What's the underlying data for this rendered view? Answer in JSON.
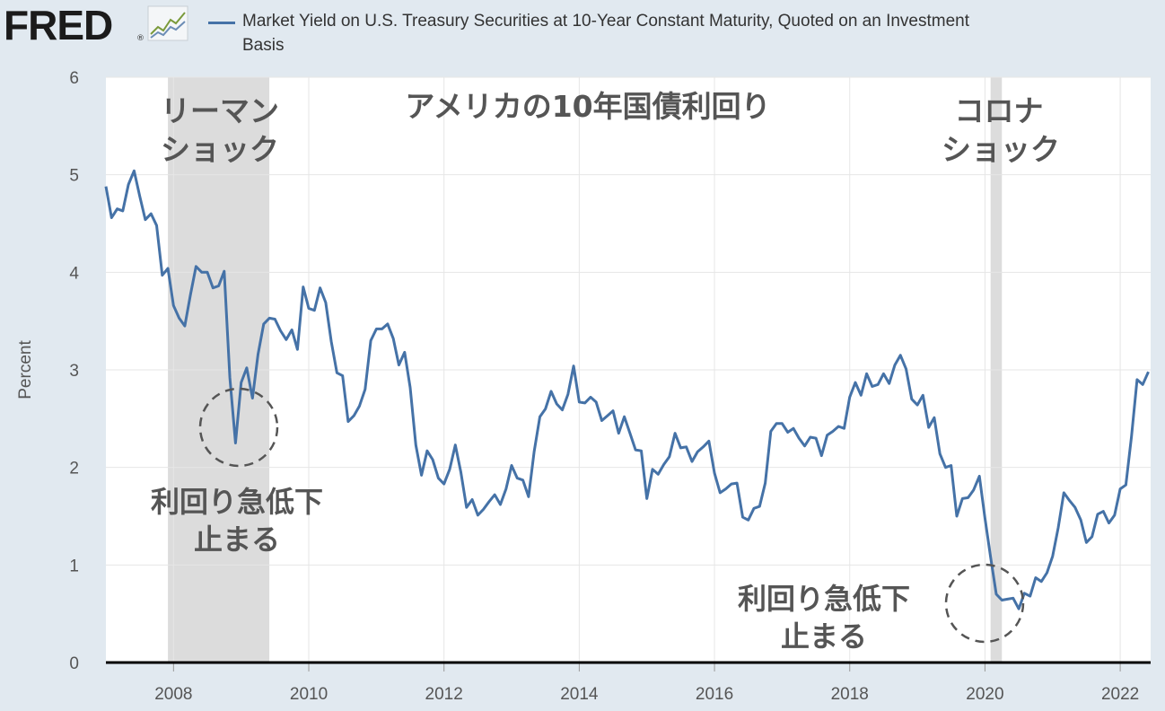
{
  "header": {
    "logo_text": "FRED",
    "logo_mark": "®",
    "logo_icon": "line-chart-icon",
    "legend": "Market Yield on U.S. Treasury Securities at 10-Year Constant Maturity, Quoted on an Investment Basis",
    "legend_color": "#4572a7"
  },
  "chart_data": {
    "type": "line",
    "title": "アメリカの10年国債利回り",
    "ylabel": "Percent",
    "xlabel": "",
    "ylim": [
      0,
      6
    ],
    "xlim": [
      2007.0,
      2022.45
    ],
    "yticks": [
      "0",
      "1",
      "2",
      "3",
      "4",
      "5",
      "6"
    ],
    "xticks": [
      "2008",
      "2010",
      "2012",
      "2014",
      "2016",
      "2018",
      "2020",
      "2022"
    ],
    "grid": true,
    "line_color": "#4572a7",
    "recession_color": "#dcdcdc",
    "recessions": [
      [
        2007.917,
        2009.417
      ],
      [
        2020.083,
        2020.25
      ]
    ],
    "recession_labels": [
      {
        "lines": [
          "リーマン",
          "ショック"
        ]
      },
      {
        "lines": [
          "コロナ",
          "ショック"
        ]
      }
    ],
    "annotations": [
      {
        "lines": [
          "利回り急低下",
          "止まる"
        ]
      },
      {
        "lines": [
          "利回り急低下",
          "止まる"
        ]
      }
    ],
    "x": [
      2007.0,
      2007.083,
      2007.167,
      2007.25,
      2007.333,
      2007.417,
      2007.5,
      2007.583,
      2007.667,
      2007.75,
      2007.833,
      2007.917,
      2008.0,
      2008.083,
      2008.167,
      2008.25,
      2008.333,
      2008.417,
      2008.5,
      2008.583,
      2008.667,
      2008.75,
      2008.833,
      2008.917,
      2009.0,
      2009.083,
      2009.167,
      2009.25,
      2009.333,
      2009.417,
      2009.5,
      2009.583,
      2009.667,
      2009.75,
      2009.833,
      2009.917,
      2010.0,
      2010.083,
      2010.167,
      2010.25,
      2010.333,
      2010.417,
      2010.5,
      2010.583,
      2010.667,
      2010.75,
      2010.833,
      2010.917,
      2011.0,
      2011.083,
      2011.167,
      2011.25,
      2011.333,
      2011.417,
      2011.5,
      2011.583,
      2011.667,
      2011.75,
      2011.833,
      2011.917,
      2012.0,
      2012.083,
      2012.167,
      2012.25,
      2012.333,
      2012.417,
      2012.5,
      2012.583,
      2012.667,
      2012.75,
      2012.833,
      2012.917,
      2013.0,
      2013.083,
      2013.167,
      2013.25,
      2013.333,
      2013.417,
      2013.5,
      2013.583,
      2013.667,
      2013.75,
      2013.833,
      2013.917,
      2014.0,
      2014.083,
      2014.167,
      2014.25,
      2014.333,
      2014.417,
      2014.5,
      2014.583,
      2014.667,
      2014.75,
      2014.833,
      2014.917,
      2015.0,
      2015.083,
      2015.167,
      2015.25,
      2015.333,
      2015.417,
      2015.5,
      2015.583,
      2015.667,
      2015.75,
      2015.833,
      2015.917,
      2016.0,
      2016.083,
      2016.167,
      2016.25,
      2016.333,
      2016.417,
      2016.5,
      2016.583,
      2016.667,
      2016.75,
      2016.833,
      2016.917,
      2017.0,
      2017.083,
      2017.167,
      2017.25,
      2017.333,
      2017.417,
      2017.5,
      2017.583,
      2017.667,
      2017.75,
      2017.833,
      2017.917,
      2018.0,
      2018.083,
      2018.167,
      2018.25,
      2018.333,
      2018.417,
      2018.5,
      2018.583,
      2018.667,
      2018.75,
      2018.833,
      2018.917,
      2019.0,
      2019.083,
      2019.167,
      2019.25,
      2019.333,
      2019.417,
      2019.5,
      2019.583,
      2019.667,
      2019.75,
      2019.833,
      2019.917,
      2020.0,
      2020.083,
      2020.167,
      2020.25,
      2020.333,
      2020.417,
      2020.5,
      2020.583,
      2020.667,
      2020.75,
      2020.833,
      2020.917,
      2021.0,
      2021.083,
      2021.167,
      2021.25,
      2021.333,
      2021.417,
      2021.5,
      2021.583,
      2021.667,
      2021.75,
      2021.833,
      2021.917,
      2022.0,
      2022.083,
      2022.167,
      2022.25,
      2022.333,
      2022.417
    ],
    "y": [
      4.88,
      4.56,
      4.65,
      4.63,
      4.9,
      5.04,
      4.78,
      4.54,
      4.6,
      4.48,
      3.97,
      4.04,
      3.66,
      3.53,
      3.45,
      3.77,
      4.06,
      4.0,
      4.0,
      3.84,
      3.86,
      4.01,
      2.92,
      2.25,
      2.87,
      3.02,
      2.71,
      3.16,
      3.47,
      3.53,
      3.52,
      3.4,
      3.31,
      3.41,
      3.21,
      3.85,
      3.63,
      3.61,
      3.84,
      3.69,
      3.29,
      2.97,
      2.94,
      2.47,
      2.53,
      2.63,
      2.8,
      3.3,
      3.42,
      3.42,
      3.47,
      3.32,
      3.05,
      3.18,
      2.82,
      2.23,
      1.92,
      2.17,
      2.08,
      1.89,
      1.83,
      1.98,
      2.23,
      1.95,
      1.59,
      1.67,
      1.51,
      1.57,
      1.65,
      1.72,
      1.62,
      1.78,
      2.02,
      1.89,
      1.87,
      1.7,
      2.16,
      2.52,
      2.6,
      2.78,
      2.65,
      2.59,
      2.75,
      3.04,
      2.67,
      2.66,
      2.72,
      2.67,
      2.48,
      2.53,
      2.58,
      2.35,
      2.52,
      2.35,
      2.18,
      2.17,
      1.68,
      1.98,
      1.93,
      2.03,
      2.11,
      2.35,
      2.2,
      2.21,
      2.06,
      2.16,
      2.21,
      2.27,
      1.94,
      1.74,
      1.78,
      1.83,
      1.84,
      1.49,
      1.46,
      1.58,
      1.6,
      1.84,
      2.37,
      2.45,
      2.45,
      2.36,
      2.4,
      2.3,
      2.22,
      2.31,
      2.3,
      2.12,
      2.33,
      2.37,
      2.42,
      2.4,
      2.72,
      2.87,
      2.74,
      2.96,
      2.83,
      2.85,
      2.96,
      2.86,
      3.05,
      3.15,
      3.01,
      2.7,
      2.64,
      2.74,
      2.41,
      2.51,
      2.14,
      2.0,
      2.02,
      1.5,
      1.68,
      1.69,
      1.77,
      1.91,
      1.48,
      1.08,
      0.7,
      0.64,
      0.65,
      0.66,
      0.55,
      0.71,
      0.68,
      0.87,
      0.83,
      0.92,
      1.09,
      1.38,
      1.74,
      1.66,
      1.59,
      1.46,
      1.23,
      1.29,
      1.52,
      1.55,
      1.43,
      1.51,
      1.78,
      1.82,
      2.32,
      2.9,
      2.85,
      2.98
    ]
  }
}
